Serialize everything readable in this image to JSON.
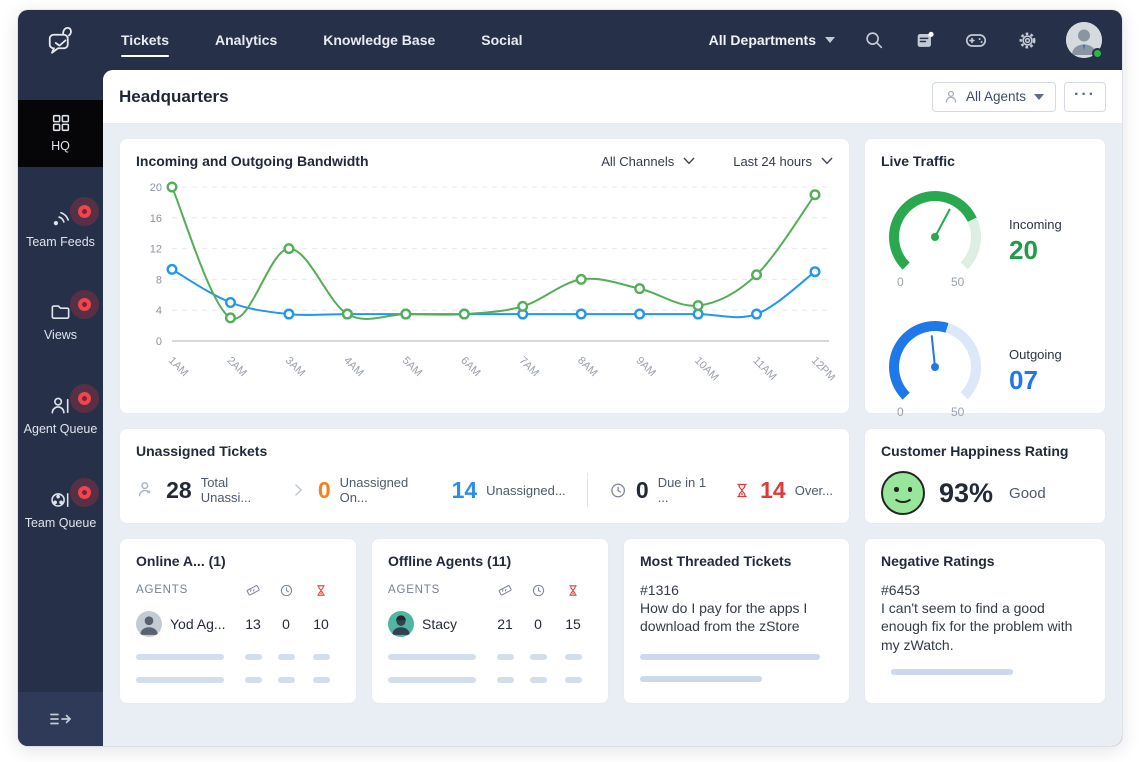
{
  "colors": {
    "navbar": "#263149",
    "active_item": "#060608",
    "content_bg": "#E9EDF4",
    "chart_green": "#53AE58",
    "chart_blue": "#2196F3",
    "stat_orange": "#F5821E",
    "stat_blue": "#2E8CEB",
    "stat_red": "#DD3B3B",
    "gauge_green": "#2AA84F",
    "gauge_blue": "#1E78E8",
    "badge_red": "#F0454D",
    "happiness_green": "#98E69B"
  },
  "topbar": {
    "tabs": [
      "Tickets",
      "Analytics",
      "Knowledge Base",
      "Social"
    ],
    "active_tab": "Tickets",
    "department": "All Departments"
  },
  "sidebar": {
    "items": [
      "HQ",
      "Team Feeds",
      "Views",
      "Agent Queue",
      "Team Queue"
    ],
    "active_item": "HQ"
  },
  "header": {
    "title": "Headquarters",
    "agents_button": "All Agents",
    "more_button": "···"
  },
  "bandwidth": {
    "title": "Incoming and Outgoing Bandwidth",
    "channels_filter": "All Channels",
    "range_filter": "Last 24 hours"
  },
  "chart_data": {
    "type": "line",
    "title": "Incoming and Outgoing Bandwidth",
    "x": [
      "1AM",
      "2AM",
      "3AM",
      "4AM",
      "5AM",
      "6AM",
      "7AM",
      "8AM",
      "9AM",
      "10AM",
      "11AM",
      "12PM"
    ],
    "series": [
      {
        "name": "Incoming",
        "color": "#53AE58",
        "values": [
          20,
          3,
          12,
          3.5,
          3.5,
          3.5,
          4.5,
          8,
          6.8,
          4.6,
          8.6,
          19
        ]
      },
      {
        "name": "Outgoing",
        "color": "#2196F3",
        "values": [
          9.3,
          5,
          3.5,
          3.5,
          3.5,
          3.5,
          3.5,
          3.5,
          3.5,
          3.5,
          3.5,
          9
        ]
      }
    ],
    "ylim": [
      0,
      20
    ],
    "yticks": [
      0,
      4,
      8,
      12,
      16,
      20
    ],
    "grid": "horizontal-dashed",
    "smooth": true,
    "legend": "none"
  },
  "live_traffic": {
    "title": "Live Traffic",
    "gauges": [
      {
        "label": "Incoming",
        "value": "20",
        "min": "0",
        "max": "50"
      },
      {
        "label": "Outgoing",
        "value": "07",
        "min": "0",
        "max": "50"
      }
    ]
  },
  "unassigned": {
    "title": "Unassigned Tickets",
    "stats": [
      {
        "value": "28",
        "label": "Total Unassi..."
      },
      {
        "value": "0",
        "label": "Unassigned On..."
      },
      {
        "value": "14",
        "label": "Unassigned..."
      },
      {
        "value": "0",
        "label": "Due in 1 ..."
      },
      {
        "value": "14",
        "label": "Over..."
      }
    ]
  },
  "happiness": {
    "title": "Customer Happiness Rating",
    "value": "93%",
    "label": "Good"
  },
  "online_agents": {
    "title": "Online A... (1)",
    "column_header": "AGENTS",
    "rows": [
      {
        "name": "Yod Ag...",
        "tickets": "13",
        "due": "0",
        "overdue": "10"
      }
    ]
  },
  "offline_agents": {
    "title": "Offline Agents (11)",
    "column_header": "AGENTS",
    "rows": [
      {
        "name": "Stacy",
        "tickets": "21",
        "due": "0",
        "overdue": "15"
      }
    ]
  },
  "threaded": {
    "title": "Most Threaded Tickets",
    "ticket_id": "#1316",
    "subject": "How do I pay for the apps I download from the zStore"
  },
  "negative": {
    "title": "Negative Ratings",
    "ticket_id": "#6453",
    "subject": "I can't seem to find a good enough fix for the problem with my zWatch."
  }
}
